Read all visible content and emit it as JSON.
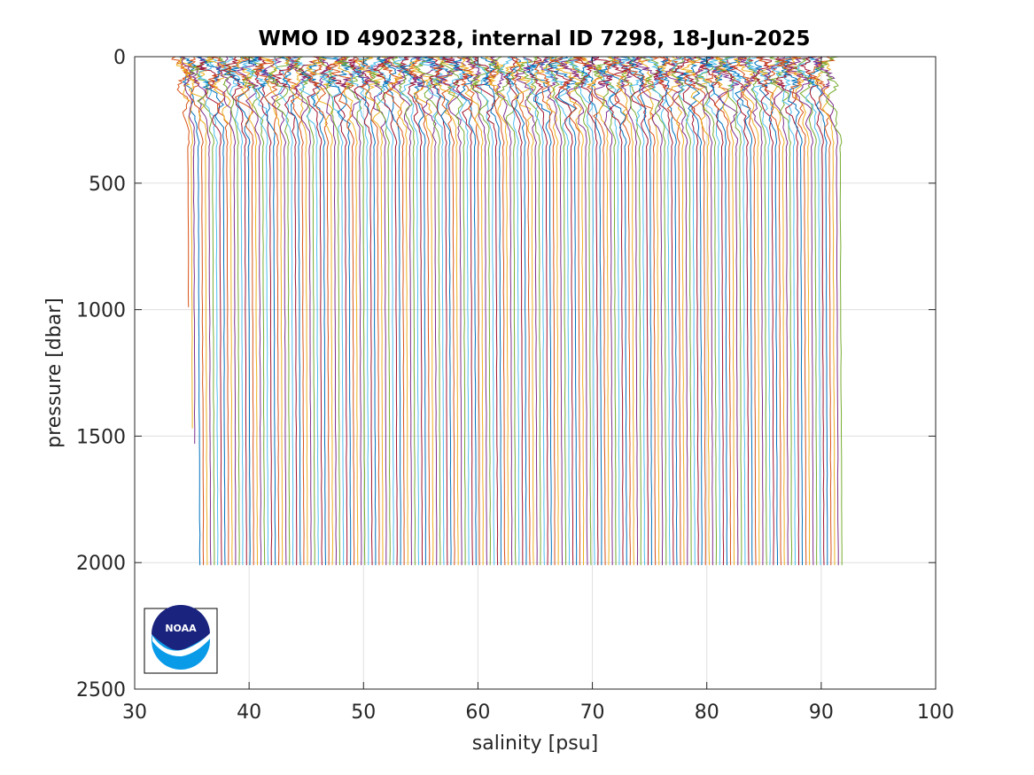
{
  "chart_data": {
    "type": "line",
    "title": "WMO ID 4902328, internal ID 7298, 18-Jun-2025",
    "xlabel": "salinity [psu]",
    "ylabel": "pressure [dbar]",
    "xlim": [
      30,
      100
    ],
    "ylim": [
      0,
      2500
    ],
    "y_reversed": true,
    "grid": true,
    "xticks": [
      30,
      40,
      50,
      60,
      70,
      80,
      90,
      100
    ],
    "yticks": [
      0,
      500,
      1000,
      1500,
      2000,
      2500
    ],
    "profiles": {
      "description_note": "Many salinity profiles, each offset horizontally; first profile near 34.5 psu at surface, last near 91.8 psu at depth",
      "count": 180,
      "first_surface_salinity": 34.3,
      "last_surface_salinity": 90.3,
      "first_deep_salinity": 35.7,
      "last_deep_salinity": 91.8,
      "max_pressure": 2010,
      "short_profiles": [
        {
          "deep_salinity": 34.8,
          "max_pressure": 1000
        },
        {
          "deep_salinity": 35.1,
          "max_pressure": 1520
        },
        {
          "deep_salinity": 35.3,
          "max_pressure": 1530
        }
      ]
    },
    "colors": [
      "#0072BD",
      "#D95319",
      "#EDB120",
      "#7E2F8E",
      "#77AC30",
      "#4DBEEE",
      "#A2142F"
    ]
  },
  "logo": {
    "text": "NOAA",
    "colors": {
      "top": "#1a237e",
      "bottom": "#0a9be8",
      "border": "#000000"
    }
  }
}
